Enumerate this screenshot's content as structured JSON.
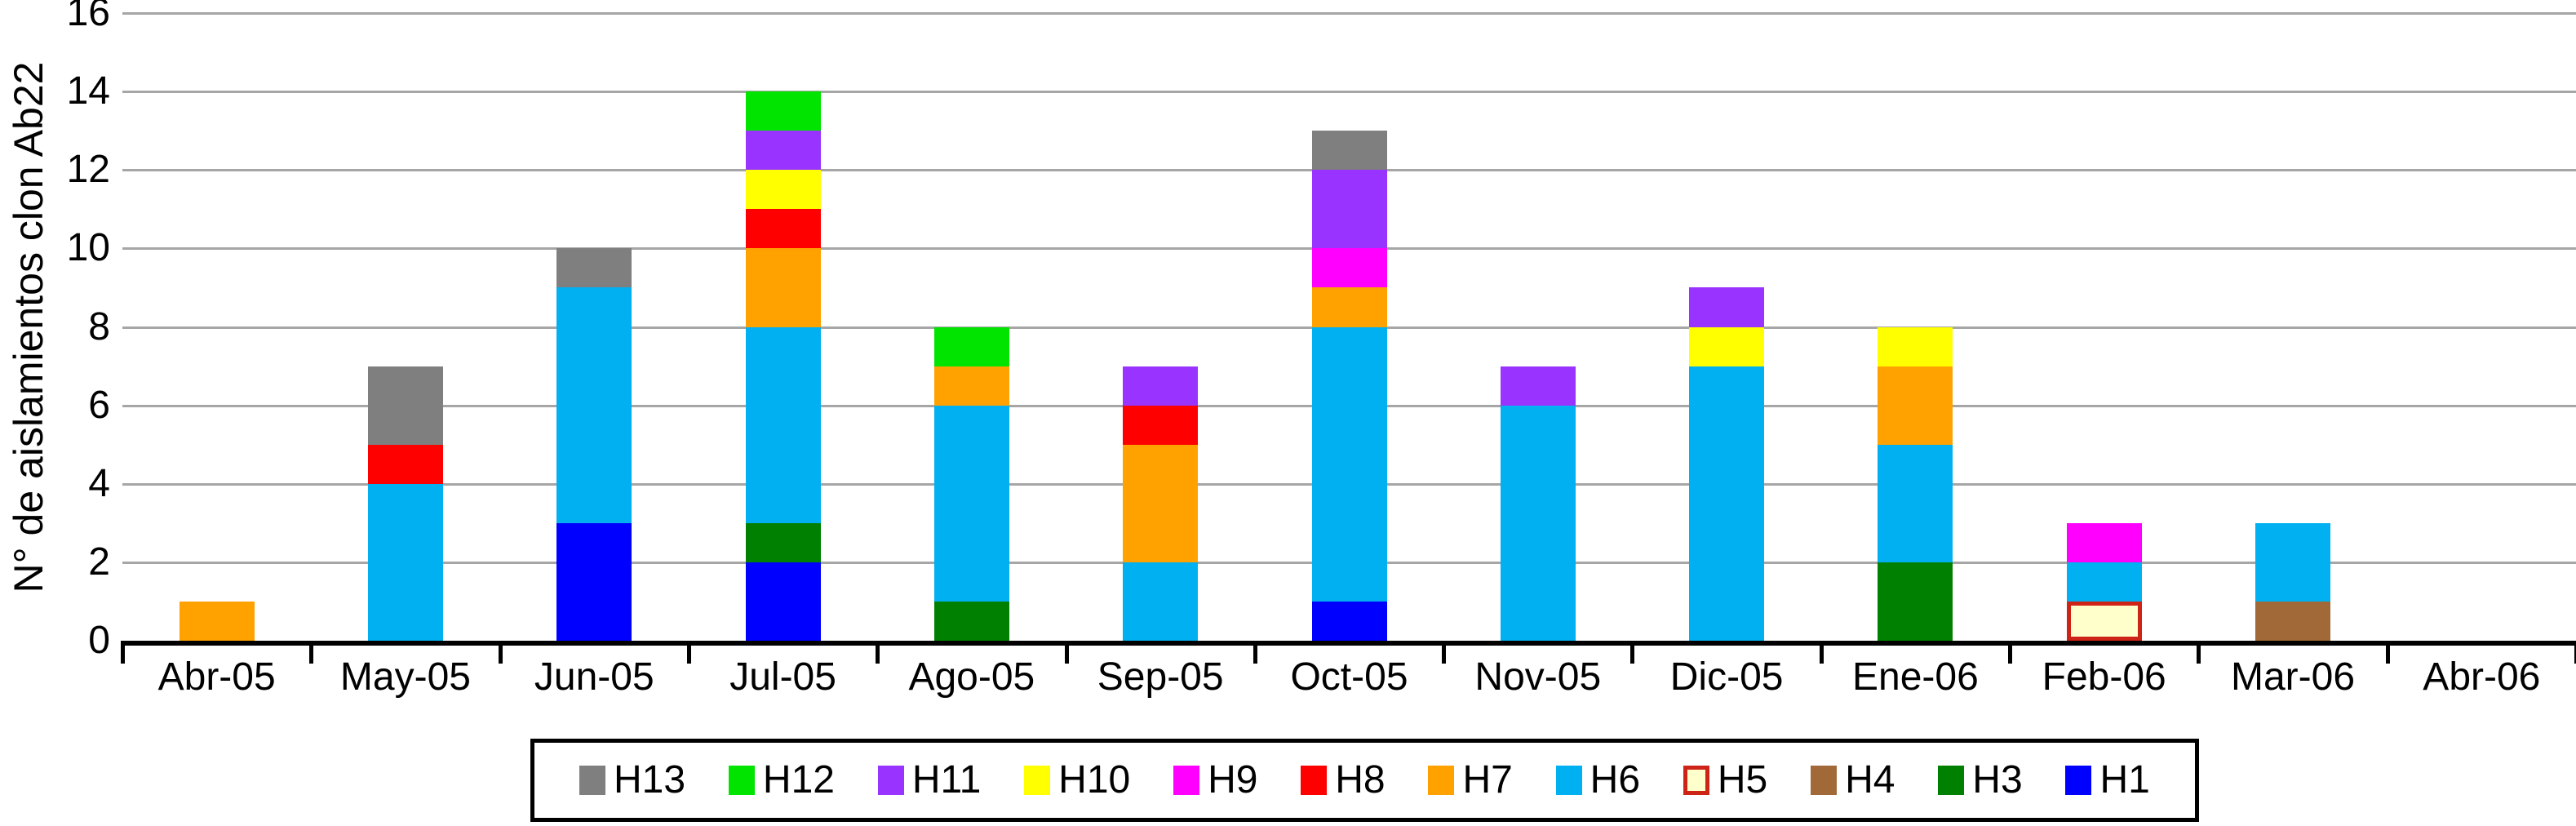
{
  "chart_data": {
    "type": "bar",
    "stacked": true,
    "title": "",
    "ylabel": "N° de aislamientos clon Ab22",
    "xlabel": "",
    "ylim": [
      0,
      16
    ],
    "ytick_step": 2,
    "grid": true,
    "legend_position": "bottom",
    "categories": [
      "Abr-05",
      "May-05",
      "Jun-05",
      "Jul-05",
      "Ago-05",
      "Sep-05",
      "Oct-05",
      "Nov-05",
      "Dic-05",
      "Ene-06",
      "Feb-06",
      "Mar-06",
      "Abr-06"
    ],
    "series": [
      {
        "name": "H1",
        "color": "#0000FF",
        "values": [
          0,
          0,
          3,
          2,
          0,
          0,
          1,
          0,
          0,
          0,
          0,
          0,
          0
        ]
      },
      {
        "name": "H3",
        "color": "#008000",
        "values": [
          0,
          0,
          0,
          1,
          1,
          0,
          0,
          0,
          0,
          2,
          0,
          0,
          0
        ]
      },
      {
        "name": "H4",
        "color": "#A06937",
        "values": [
          0,
          0,
          0,
          0,
          0,
          0,
          0,
          0,
          0,
          0,
          0,
          1,
          0
        ]
      },
      {
        "name": "H5",
        "color": "#FFFFCC",
        "border_color": "#CE2418",
        "values": [
          0,
          0,
          0,
          0,
          0,
          0,
          0,
          0,
          0,
          0,
          1,
          0,
          0
        ]
      },
      {
        "name": "H6",
        "color": "#00B0F0",
        "values": [
          0,
          4,
          6,
          5,
          5,
          2,
          7,
          6,
          7,
          3,
          1,
          2,
          0
        ]
      },
      {
        "name": "H7",
        "color": "#FFA200",
        "values": [
          1,
          0,
          0,
          2,
          1,
          3,
          1,
          0,
          0,
          2,
          0,
          0,
          0
        ]
      },
      {
        "name": "H8",
        "color": "#FF0000",
        "values": [
          0,
          1,
          0,
          1,
          0,
          1,
          0,
          0,
          0,
          0,
          0,
          0,
          0
        ]
      },
      {
        "name": "H9",
        "color": "#FF00FF",
        "values": [
          0,
          0,
          0,
          0,
          0,
          0,
          1,
          0,
          0,
          0,
          1,
          0,
          0
        ]
      },
      {
        "name": "H10",
        "color": "#FFFF00",
        "values": [
          0,
          0,
          0,
          1,
          0,
          0,
          0,
          0,
          1,
          1,
          0,
          0,
          0
        ]
      },
      {
        "name": "H11",
        "color": "#9933FF",
        "values": [
          0,
          0,
          0,
          1,
          0,
          1,
          2,
          1,
          1,
          0,
          0,
          0,
          0
        ]
      },
      {
        "name": "H12",
        "color": "#00E400",
        "values": [
          0,
          0,
          0,
          1,
          1,
          0,
          0,
          0,
          0,
          0,
          0,
          0,
          0
        ]
      },
      {
        "name": "H13",
        "color": "#7F7F7F",
        "values": [
          0,
          2,
          1,
          0,
          0,
          0,
          1,
          0,
          0,
          0,
          0,
          0,
          0
        ]
      }
    ],
    "totals": [
      1,
      7,
      10,
      14,
      8,
      7,
      13,
      7,
      9,
      8,
      3,
      3,
      0
    ],
    "legend_order": [
      "H13",
      "H12",
      "H11",
      "H10",
      "H9",
      "H8",
      "H7",
      "H6",
      "H5",
      "H4",
      "H3",
      "H1"
    ],
    "axis_color": "#000000",
    "gridline_color": "#A6A6A6"
  }
}
